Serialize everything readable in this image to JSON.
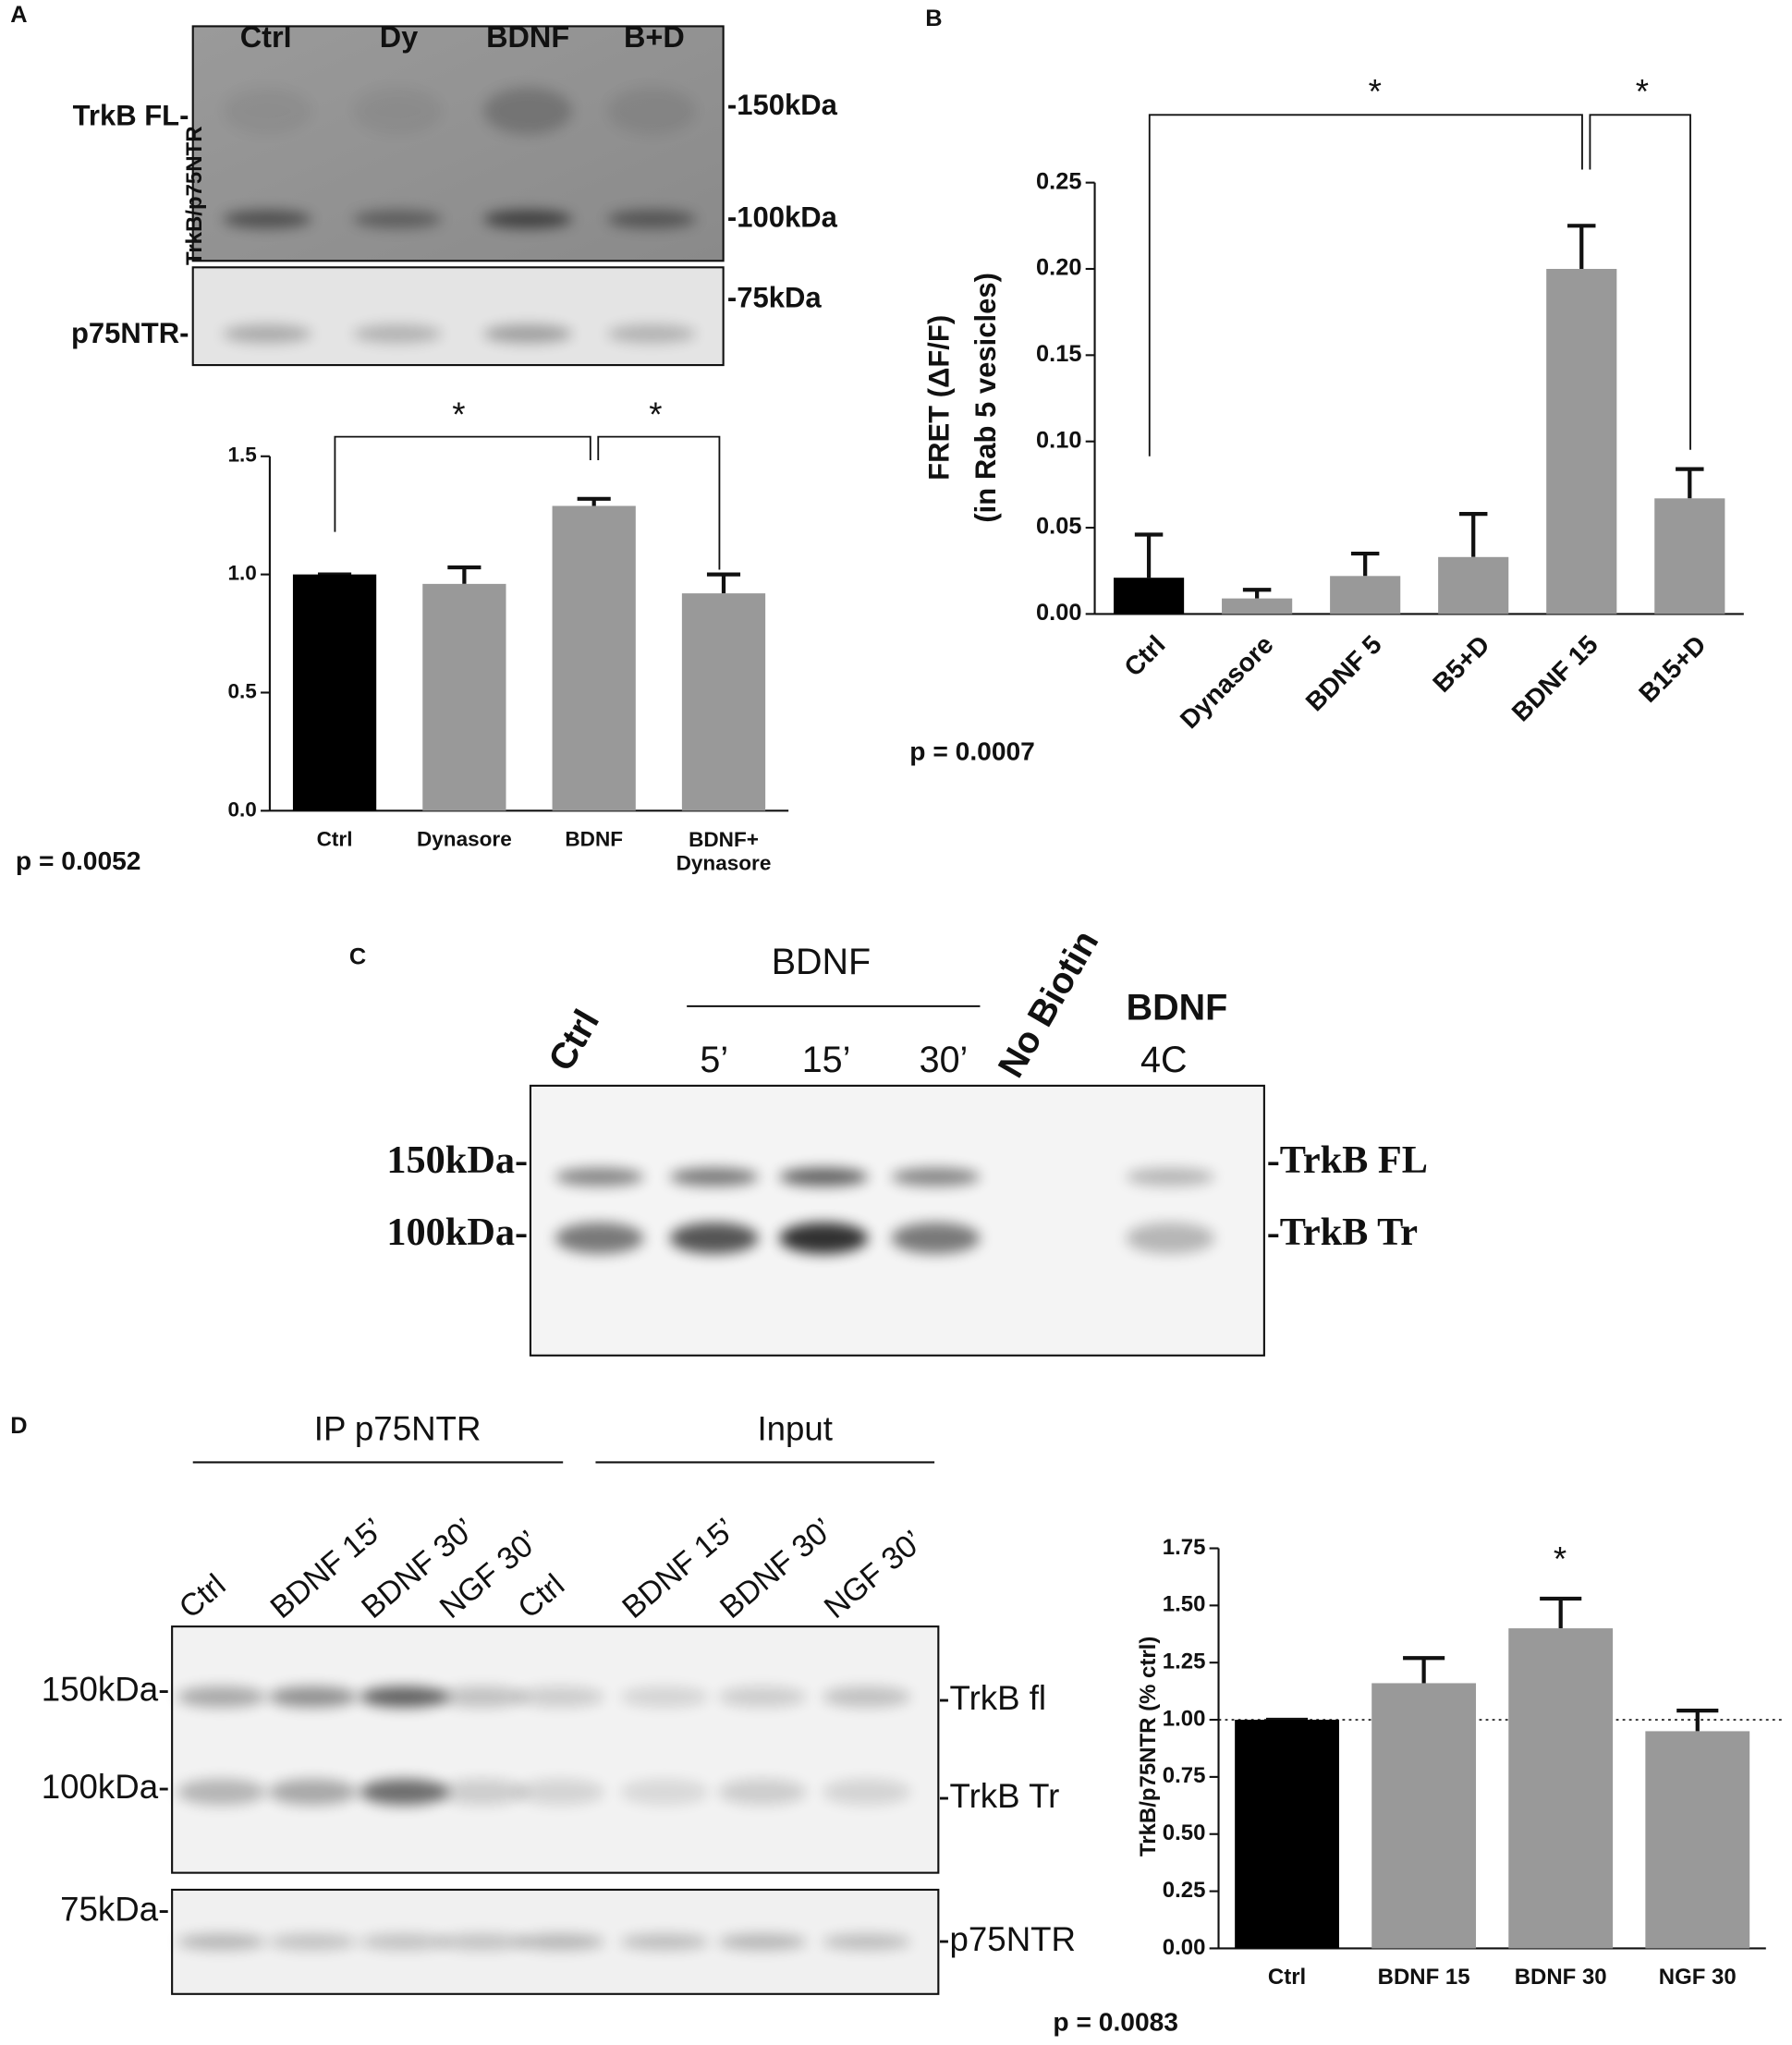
{
  "panel_labels": [
    "A",
    "B",
    "C",
    "D"
  ],
  "blot_a": {
    "lanes": [
      "Ctrl",
      "Dy",
      "BDNF",
      "B+D"
    ],
    "left_labels": [
      "TrkB FL-",
      "p75NTR-"
    ],
    "size_markers": [
      "-150kDa",
      "-100kDa",
      "-75kDa"
    ]
  },
  "blot_c": {
    "lane_ctrl": "Ctrl",
    "group": "BDNF",
    "times": [
      "5’",
      "15’",
      "30’"
    ],
    "no_biotin": "No Biotin",
    "cold": [
      "BDNF",
      "4C"
    ],
    "size_markers": [
      "150kDa-",
      "100kDa-"
    ],
    "band_labels": [
      "-TrkB FL",
      "-TrkB Tr"
    ]
  },
  "blot_d": {
    "groups": [
      "IP p75NTR",
      "Input"
    ],
    "lanes": [
      "Ctrl",
      "BDNF 15’",
      "BDNF 30’",
      "NGF 30’",
      "Ctrl",
      "BDNF 15’",
      "BDNF 30’",
      "NGF 30’"
    ],
    "size_markers": [
      "150kDa-",
      "100kDa-",
      "75kDa-"
    ],
    "band_labels": [
      "-TrkB fl",
      "-TrkB Tr",
      "-p75NTR"
    ]
  },
  "chart_data": [
    {
      "type": "bar",
      "ylabel": [
        "TrkB/p75NTR"
      ],
      "categories": [
        "Ctrl",
        "Dynasore",
        "BDNF",
        "BDNF+\nDynasore"
      ],
      "values": [
        1.0,
        0.96,
        1.29,
        0.92
      ],
      "errors": [
        0,
        0.07,
        0.03,
        0.08
      ],
      "colors": [
        "#000000",
        "#999999",
        "#999999",
        "#999999"
      ],
      "ylim": [
        0,
        1.5
      ],
      "yticks": [
        {
          "value": 0,
          "label": "0.0"
        },
        {
          "value": 0.5,
          "label": "0.5"
        },
        {
          "value": 1,
          "label": "1.0"
        },
        {
          "value": 1.5,
          "label": "1.5"
        }
      ],
      "annotations": [
        "*",
        "*"
      ],
      "p_value": "p = 0.0052"
    },
    {
      "type": "bar",
      "ylabel": [
        "FRET (ΔF/F)",
        "(in Rab 5 vesicles)"
      ],
      "categories": [
        "Ctrl",
        "Dynasore",
        "BDNF 5",
        "B5+D",
        "BDNF 15",
        "B15+D"
      ],
      "values": [
        0.021,
        0.009,
        0.022,
        0.033,
        0.2,
        0.067
      ],
      "errors": [
        0.025,
        0.005,
        0.013,
        0.025,
        0.025,
        0.017
      ],
      "colors": [
        "#000000",
        "#999999",
        "#999999",
        "#999999",
        "#999999",
        "#999999"
      ],
      "ylim": [
        0,
        0.25
      ],
      "yticks": [
        {
          "value": 0,
          "label": "0.00"
        },
        {
          "value": 0.05,
          "label": "0.05"
        },
        {
          "value": 0.1,
          "label": "0.10"
        },
        {
          "value": 0.15,
          "label": "0.15"
        },
        {
          "value": 0.2,
          "label": "0.20"
        },
        {
          "value": 0.25,
          "label": "0.25"
        }
      ],
      "annotations": [
        "*",
        "*"
      ],
      "p_value": "p = 0.0007"
    },
    {
      "type": "bar",
      "ylabel": [
        "TrkB/p75NTR (% ctrl)"
      ],
      "categories": [
        "Ctrl",
        "BDNF 15",
        "BDNF 30",
        "NGF 30"
      ],
      "values": [
        1.0,
        1.16,
        1.4,
        0.95
      ],
      "errors": [
        0,
        0.11,
        0.13,
        0.09
      ],
      "colors": [
        "#000000",
        "#999999",
        "#999999",
        "#999999"
      ],
      "ylim": [
        0,
        1.75
      ],
      "yticks": [
        {
          "value": 0,
          "label": "0.00"
        },
        {
          "value": 0.25,
          "label": "0.25"
        },
        {
          "value": 0.5,
          "label": "0.50"
        },
        {
          "value": 0.75,
          "label": "0.75"
        },
        {
          "value": 1,
          "label": "1.00"
        },
        {
          "value": 1.25,
          "label": "1.25"
        },
        {
          "value": 1.5,
          "label": "1.50"
        },
        {
          "value": 1.75,
          "label": "1.75"
        }
      ],
      "reference_line": 1,
      "annotations": [
        "*"
      ],
      "p_value": "p = 0.0083"
    }
  ]
}
